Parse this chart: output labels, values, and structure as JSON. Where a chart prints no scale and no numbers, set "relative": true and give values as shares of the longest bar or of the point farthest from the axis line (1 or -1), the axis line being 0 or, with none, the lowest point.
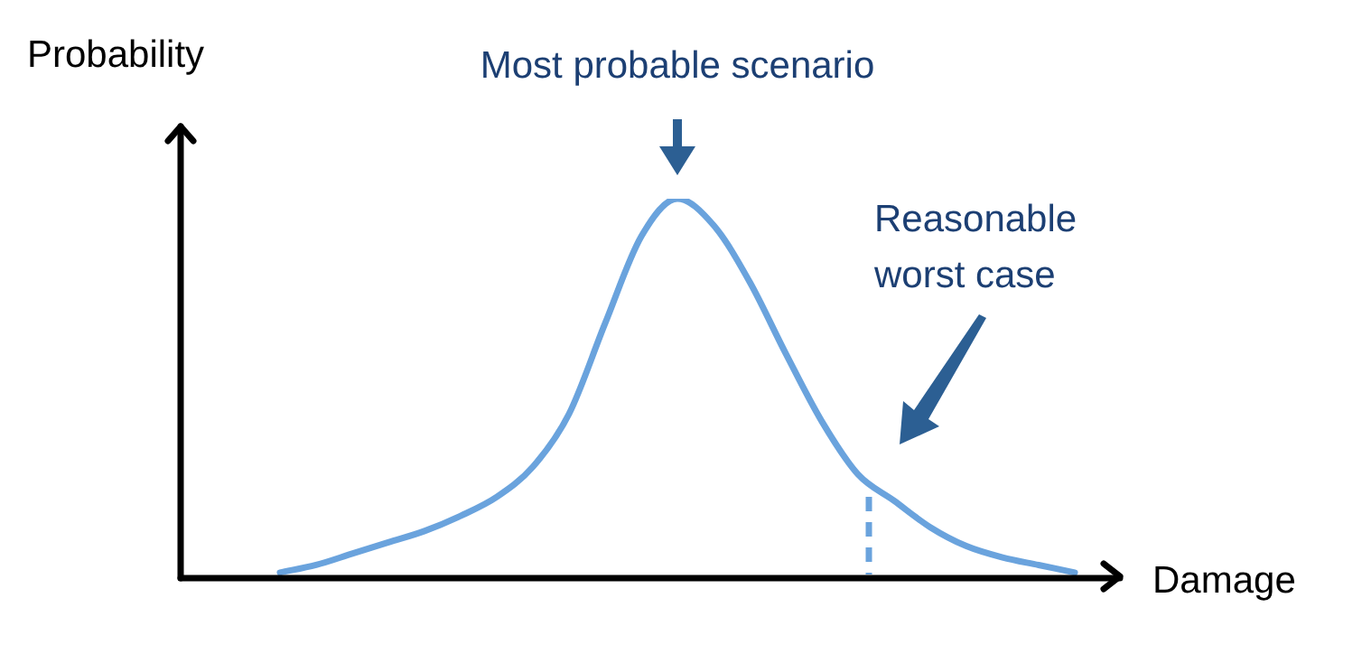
{
  "chart_data": {
    "type": "line",
    "relative": true,
    "xlabel": "Damage",
    "ylabel": "Probability",
    "categories": [
      null,
      null,
      null,
      null,
      null,
      null,
      null,
      null,
      null,
      null,
      null,
      null,
      null,
      null,
      null,
      null,
      null,
      null,
      null,
      null,
      null,
      null,
      null,
      null,
      null,
      null
    ],
    "series": [
      {
        "color": "#6aa3dd",
        "values": [
          null,
          null,
          0.01,
          0.03,
          0.06,
          0.09,
          0.12,
          0.16,
          0.21,
          0.29,
          0.43,
          0.67,
          0.9,
          1.0,
          0.93,
          0.78,
          0.59,
          0.41,
          0.27,
          0.2,
          0.13,
          0.08,
          0.05,
          0.03,
          0.01,
          null
        ]
      }
    ],
    "annotations": [
      "Most probable scenario",
      "Reasonable worst case"
    ],
    "legend": false,
    "marker": "none",
    "line_style": "solid"
  }
}
